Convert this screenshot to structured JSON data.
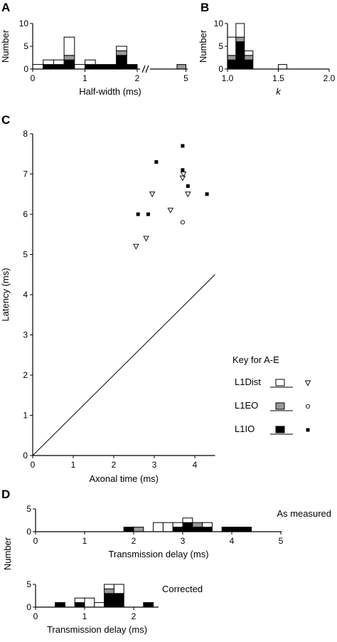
{
  "legend": {
    "title": "Key for A-E",
    "entries": [
      {
        "label": "L1Dist",
        "fill": "#ffffff",
        "marker": "down-triangle"
      },
      {
        "label": "L1EO",
        "fill": "#999999",
        "marker": "circle"
      },
      {
        "label": "L1IO",
        "fill": "#000000",
        "marker": "square"
      }
    ]
  },
  "colors": {
    "L1Dist": "#ffffff",
    "L1EO": "#999999",
    "L1IO": "#000000",
    "stroke": "#000000"
  },
  "chart_data": [
    {
      "panel": "A",
      "type": "bar",
      "stacked": true,
      "xlabel": "Half-width (ms)",
      "ylabel": "Number",
      "ylim": [
        0,
        10
      ],
      "yticks": [
        0,
        5,
        10
      ],
      "x_break": true,
      "xticks": [
        {
          "value": 0,
          "label": "0"
        },
        {
          "value": 1,
          "label": "1"
        },
        {
          "value": 2,
          "label": "2"
        },
        {
          "value": 5,
          "label": "5"
        }
      ],
      "bin_width": 0.2,
      "bins": [
        {
          "x0": 0.0,
          "L1IO": 0,
          "L1EO": 0,
          "L1Dist": 1
        },
        {
          "x0": 0.2,
          "L1IO": 1,
          "L1EO": 0,
          "L1Dist": 1
        },
        {
          "x0": 0.4,
          "L1IO": 1,
          "L1EO": 0,
          "L1Dist": 1
        },
        {
          "x0": 0.6,
          "L1IO": 2,
          "L1EO": 1,
          "L1Dist": 4
        },
        {
          "x0": 0.8,
          "L1IO": 0,
          "L1EO": 0,
          "L1Dist": 1
        },
        {
          "x0": 1.0,
          "L1IO": 1,
          "L1EO": 0,
          "L1Dist": 1
        },
        {
          "x0": 1.2,
          "L1IO": 1,
          "L1EO": 0,
          "L1Dist": 0
        },
        {
          "x0": 1.4,
          "L1IO": 1,
          "L1EO": 0,
          "L1Dist": 0
        },
        {
          "x0": 1.6,
          "L1IO": 3,
          "L1EO": 1,
          "L1Dist": 1
        },
        {
          "x0": 1.8,
          "L1IO": 1,
          "L1EO": 0,
          "L1Dist": 0
        },
        {
          "x0": 4.8,
          "L1IO": 0,
          "L1EO": 1,
          "L1Dist": 0
        }
      ]
    },
    {
      "panel": "B",
      "type": "bar",
      "stacked": true,
      "xlabel": "k",
      "ylabel": "Number",
      "xlim": [
        1.0,
        2.0
      ],
      "xticks": [
        {
          "value": 1.0,
          "label": "1.0"
        },
        {
          "value": 1.5,
          "label": "1.5"
        },
        {
          "value": 2.0,
          "label": "2.0"
        }
      ],
      "ylim": [
        0,
        10
      ],
      "yticks": [
        0,
        5,
        10
      ],
      "bin_width": 0.083,
      "bins": [
        {
          "x0": 1.0,
          "L1IO": 2,
          "L1EO": 1,
          "L1Dist": 4
        },
        {
          "x0": 1.083,
          "L1IO": 6,
          "L1EO": 1,
          "L1Dist": 3
        },
        {
          "x0": 1.167,
          "L1IO": 2,
          "L1EO": 1,
          "L1Dist": 1
        },
        {
          "x0": 1.5,
          "L1IO": 0,
          "L1EO": 0,
          "L1Dist": 1
        }
      ]
    },
    {
      "panel": "C",
      "type": "scatter",
      "xlabel": "Axonal time (ms)",
      "ylabel": "Latency (ms)",
      "xlim": [
        0,
        4.5
      ],
      "ylim": [
        0,
        8
      ],
      "xticks": [
        0,
        1,
        2,
        3,
        4
      ],
      "yticks": [
        0,
        1,
        2,
        3,
        4,
        5,
        6,
        7,
        8
      ],
      "identity_line": {
        "x": [
          0,
          4.5
        ],
        "y": [
          0,
          4.5
        ]
      },
      "series": [
        {
          "name": "L1Dist",
          "marker": "down-triangle",
          "points": [
            [
              2.55,
              5.2
            ],
            [
              2.8,
              5.4
            ],
            [
              2.95,
              6.5
            ],
            [
              3.4,
              6.1
            ],
            [
              3.7,
              6.9
            ],
            [
              3.72,
              7.0
            ],
            [
              3.83,
              6.5
            ]
          ]
        },
        {
          "name": "L1EO",
          "marker": "circle",
          "points": [
            [
              3.7,
              5.8
            ]
          ]
        },
        {
          "name": "L1IO",
          "marker": "square",
          "points": [
            [
              2.6,
              6.0
            ],
            [
              2.85,
              6.0
            ],
            [
              3.05,
              7.3
            ],
            [
              3.7,
              7.7
            ],
            [
              3.7,
              7.1
            ],
            [
              3.83,
              6.7
            ],
            [
              4.3,
              6.5
            ]
          ]
        }
      ]
    },
    {
      "panel": "D",
      "type": "bar",
      "stacked": true,
      "annotation": "As measured",
      "xlabel": "Transmission delay (ms)",
      "ylabel": "Number",
      "xlim": [
        0,
        5
      ],
      "xticks": [
        0,
        1,
        2,
        3,
        4,
        5
      ],
      "ylim": [
        0,
        5
      ],
      "yticks": [
        0,
        5
      ],
      "bin_width": 0.2,
      "bins": [
        {
          "x0": 1.8,
          "L1IO": 1,
          "L1EO": 0,
          "L1Dist": 0
        },
        {
          "x0": 2.0,
          "L1IO": 0,
          "L1EO": 1,
          "L1Dist": 0
        },
        {
          "x0": 2.4,
          "L1IO": 0,
          "L1EO": 0,
          "L1Dist": 2
        },
        {
          "x0": 2.6,
          "L1IO": 0,
          "L1EO": 0,
          "L1Dist": 2
        },
        {
          "x0": 2.8,
          "L1IO": 1,
          "L1EO": 0,
          "L1Dist": 1
        },
        {
          "x0": 3.0,
          "L1IO": 2,
          "L1EO": 0,
          "L1Dist": 1
        },
        {
          "x0": 3.2,
          "L1IO": 1,
          "L1EO": 1,
          "L1Dist": 0
        },
        {
          "x0": 3.4,
          "L1IO": 1,
          "L1EO": 0,
          "L1Dist": 1
        },
        {
          "x0": 3.8,
          "L1IO": 1,
          "L1EO": 0,
          "L1Dist": 0
        },
        {
          "x0": 4.0,
          "L1IO": 1,
          "L1EO": 0,
          "L1Dist": 0
        },
        {
          "x0": 4.2,
          "L1IO": 1,
          "L1EO": 0,
          "L1Dist": 0
        }
      ]
    },
    {
      "panel": "",
      "type": "bar",
      "stacked": true,
      "annotation": "Corrected",
      "xlabel": "Transmission delay (ms)",
      "ylabel": "",
      "xlim": [
        0,
        2.5
      ],
      "xticks": [
        0,
        1,
        2
      ],
      "ylim": [
        0,
        5
      ],
      "yticks": [
        0,
        5
      ],
      "bin_width": 0.2,
      "bins": [
        {
          "x0": 0.4,
          "L1IO": 1,
          "L1EO": 0,
          "L1Dist": 0
        },
        {
          "x0": 0.8,
          "L1IO": 1,
          "L1EO": 0,
          "L1Dist": 1
        },
        {
          "x0": 1.0,
          "L1IO": 0,
          "L1EO": 0,
          "L1Dist": 2
        },
        {
          "x0": 1.2,
          "L1IO": 0,
          "L1EO": 0,
          "L1Dist": 1
        },
        {
          "x0": 1.4,
          "L1IO": 3,
          "L1EO": 1,
          "L1Dist": 1
        },
        {
          "x0": 1.6,
          "L1IO": 3,
          "L1EO": 0,
          "L1Dist": 2
        },
        {
          "x0": 2.2,
          "L1IO": 1,
          "L1EO": 0,
          "L1Dist": 0
        }
      ]
    }
  ]
}
